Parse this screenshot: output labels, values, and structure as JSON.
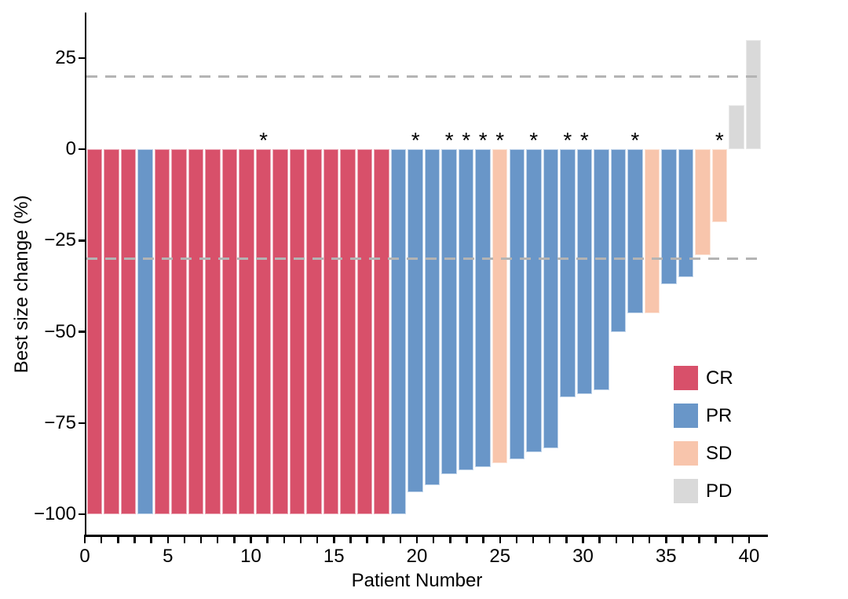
{
  "chart_data": {
    "type": "bar",
    "title": "",
    "xlabel": "Patient Number",
    "ylabel": "Best size change (%)",
    "xlim": [
      0,
      40
    ],
    "ylim": [
      -106,
      36
    ],
    "grid": false,
    "x_major_ticks": [
      {
        "value": 0,
        "label": "0"
      },
      {
        "value": 5,
        "label": "5"
      },
      {
        "value": 10,
        "label": "10"
      },
      {
        "value": 15,
        "label": "15"
      },
      {
        "value": 20,
        "label": "20"
      },
      {
        "value": 25,
        "label": "25"
      },
      {
        "value": 30,
        "label": "30"
      },
      {
        "value": 35,
        "label": "35"
      },
      {
        "value": 40,
        "label": "40"
      }
    ],
    "x_minor_tick_every": 1,
    "y_ticks": [
      {
        "value": 25,
        "label": "25"
      },
      {
        "value": 0,
        "label": "0"
      },
      {
        "value": -25,
        "label": "−25"
      },
      {
        "value": -50,
        "label": "−50"
      },
      {
        "value": -75,
        "label": "−75"
      },
      {
        "value": -100,
        "label": "−100"
      }
    ],
    "reference_lines": [
      {
        "y": 20,
        "style": "dashed",
        "color": "#b4b4b4"
      },
      {
        "y": -30,
        "style": "dashed",
        "color": "#b4b4b4"
      }
    ],
    "annotation_symbol": "*",
    "legend_position": "inside-lower-right",
    "legend": [
      {
        "label": "CR",
        "color": "#d8506a"
      },
      {
        "label": "PR",
        "color": "#6996c8"
      },
      {
        "label": "SD",
        "color": "#f8c5ac"
      },
      {
        "label": "PD",
        "color": "#d9d9d9"
      }
    ],
    "series": [
      {
        "patient": 1,
        "value": -100,
        "response": "CR",
        "asterisk": false
      },
      {
        "patient": 2,
        "value": -100,
        "response": "CR",
        "asterisk": false
      },
      {
        "patient": 3,
        "value": -100,
        "response": "CR",
        "asterisk": false
      },
      {
        "patient": 4,
        "value": -100,
        "response": "PR",
        "asterisk": false
      },
      {
        "patient": 5,
        "value": -100,
        "response": "CR",
        "asterisk": false
      },
      {
        "patient": 6,
        "value": -100,
        "response": "CR",
        "asterisk": false
      },
      {
        "patient": 7,
        "value": -100,
        "response": "CR",
        "asterisk": false
      },
      {
        "patient": 8,
        "value": -100,
        "response": "CR",
        "asterisk": false
      },
      {
        "patient": 9,
        "value": -100,
        "response": "CR",
        "asterisk": false
      },
      {
        "patient": 10,
        "value": -100,
        "response": "CR",
        "asterisk": false
      },
      {
        "patient": 11,
        "value": -100,
        "response": "CR",
        "asterisk": true
      },
      {
        "patient": 12,
        "value": -100,
        "response": "CR",
        "asterisk": false
      },
      {
        "patient": 13,
        "value": -100,
        "response": "CR",
        "asterisk": false
      },
      {
        "patient": 14,
        "value": -100,
        "response": "CR",
        "asterisk": false
      },
      {
        "patient": 15,
        "value": -100,
        "response": "CR",
        "asterisk": false
      },
      {
        "patient": 16,
        "value": -100,
        "response": "CR",
        "asterisk": false
      },
      {
        "patient": 17,
        "value": -100,
        "response": "CR",
        "asterisk": false
      },
      {
        "patient": 18,
        "value": -100,
        "response": "CR",
        "asterisk": false
      },
      {
        "patient": 19,
        "value": -100,
        "response": "PR",
        "asterisk": false
      },
      {
        "patient": 20,
        "value": -94,
        "response": "PR",
        "asterisk": true
      },
      {
        "patient": 21,
        "value": -92,
        "response": "PR",
        "asterisk": false
      },
      {
        "patient": 22,
        "value": -89,
        "response": "PR",
        "asterisk": true
      },
      {
        "patient": 23,
        "value": -88,
        "response": "PR",
        "asterisk": true
      },
      {
        "patient": 24,
        "value": -87,
        "response": "PR",
        "asterisk": true
      },
      {
        "patient": 25,
        "value": -86,
        "response": "SD",
        "asterisk": true
      },
      {
        "patient": 26,
        "value": -85,
        "response": "PR",
        "asterisk": false
      },
      {
        "patient": 27,
        "value": -83,
        "response": "PR",
        "asterisk": true
      },
      {
        "patient": 28,
        "value": -82,
        "response": "PR",
        "asterisk": false
      },
      {
        "patient": 29,
        "value": -68,
        "response": "PR",
        "asterisk": true
      },
      {
        "patient": 30,
        "value": -67,
        "response": "PR",
        "asterisk": true
      },
      {
        "patient": 31,
        "value": -66,
        "response": "PR",
        "asterisk": false
      },
      {
        "patient": 32,
        "value": -50,
        "response": "PR",
        "asterisk": false
      },
      {
        "patient": 33,
        "value": -45,
        "response": "PR",
        "asterisk": true
      },
      {
        "patient": 34,
        "value": -45,
        "response": "SD",
        "asterisk": false
      },
      {
        "patient": 35,
        "value": -37,
        "response": "PR",
        "asterisk": false
      },
      {
        "patient": 36,
        "value": -35,
        "response": "PR",
        "asterisk": false
      },
      {
        "patient": 37,
        "value": -29,
        "response": "SD",
        "asterisk": false
      },
      {
        "patient": 38,
        "value": -20,
        "response": "SD",
        "asterisk": true
      },
      {
        "patient": 39,
        "value": 12,
        "response": "PD",
        "asterisk": false
      },
      {
        "patient": 40,
        "value": 30,
        "response": "PD",
        "asterisk": false
      }
    ]
  }
}
